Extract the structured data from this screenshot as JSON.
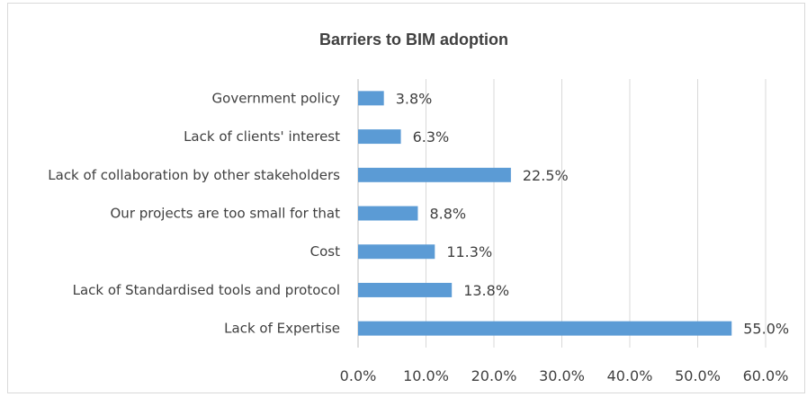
{
  "chart_data": {
    "type": "bar",
    "orientation": "horizontal",
    "title": "Barriers to BIM adoption",
    "categories": [
      "Government policy",
      "Lack of clients' interest",
      "Lack of collaboration by other stakeholders",
      "Our projects are too small for that",
      "Cost",
      "Lack of Standardised tools and protocol",
      "Lack of Expertise"
    ],
    "values": [
      3.8,
      6.3,
      22.5,
      8.8,
      11.3,
      13.8,
      55.0
    ],
    "data_labels": [
      "3.8%",
      "6.3%",
      "22.5%",
      "8.8%",
      "11.3%",
      "13.8%",
      "55.0%"
    ],
    "x_ticks": [
      "0.0%",
      "10.0%",
      "20.0%",
      "30.0%",
      "40.0%",
      "50.0%",
      "60.0%"
    ],
    "xlim": [
      0,
      60
    ],
    "xlabel": "",
    "ylabel": "",
    "grid": "vertical",
    "legend": "none",
    "colors": {
      "bar": "#5b9bd5",
      "grid": "#d9d9d9",
      "text": "#404040",
      "border": "#d9d9d9"
    }
  }
}
